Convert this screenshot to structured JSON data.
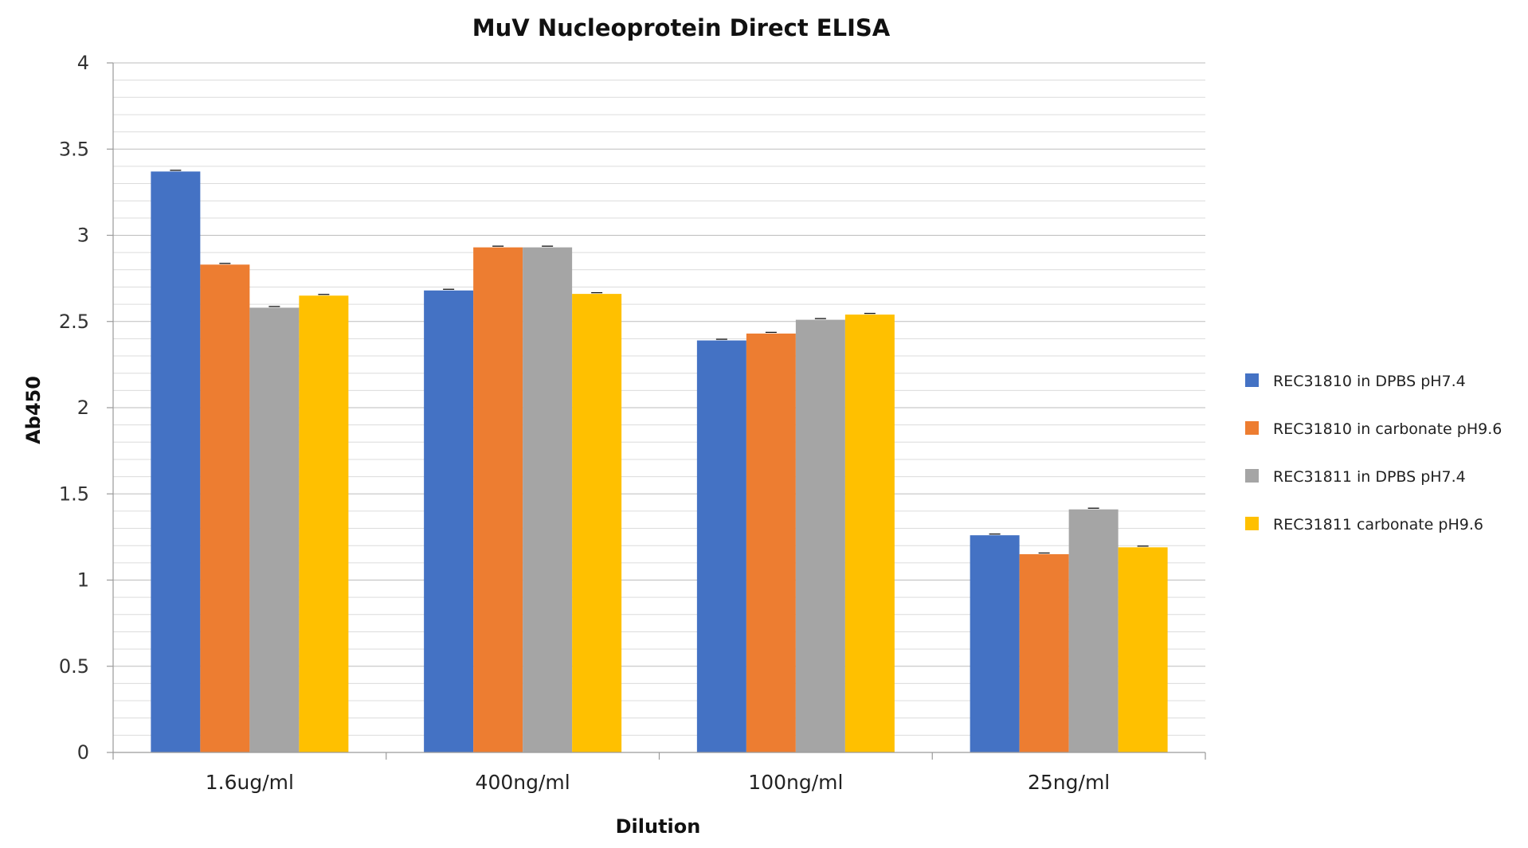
{
  "chart_data": {
    "type": "bar",
    "title": "MuV Nucleoprotein Direct ELISA",
    "xlabel": "Dilution",
    "ylabel": "Ab450",
    "categories": [
      "1.6ug/ml",
      "400ng/ml",
      "100ng/ml",
      "25ng/ml"
    ],
    "series": [
      {
        "name": "REC31810 in DPBS pH7.4",
        "color": "#4472C4",
        "values": [
          3.37,
          2.68,
          2.39,
          1.26
        ]
      },
      {
        "name": "REC31810 in carbonate pH9.6",
        "color": "#ED7D31",
        "values": [
          2.83,
          2.93,
          2.43,
          1.15
        ]
      },
      {
        "name": "REC31811 in DPBS pH7.4",
        "color": "#A5A5A5",
        "values": [
          2.58,
          2.93,
          2.51,
          1.41
        ]
      },
      {
        "name": "REC31811 carbonate pH9.6",
        "color": "#FFC000",
        "values": [
          2.65,
          2.66,
          2.54,
          1.19
        ]
      }
    ],
    "ylim": [
      0,
      4
    ],
    "yticks": [
      "0",
      "0.5",
      "1",
      "1.5",
      "2",
      "2.5",
      "3",
      "3.5",
      "4"
    ],
    "minor_gridlines": true,
    "error_bars": true,
    "legend_position": "right"
  }
}
